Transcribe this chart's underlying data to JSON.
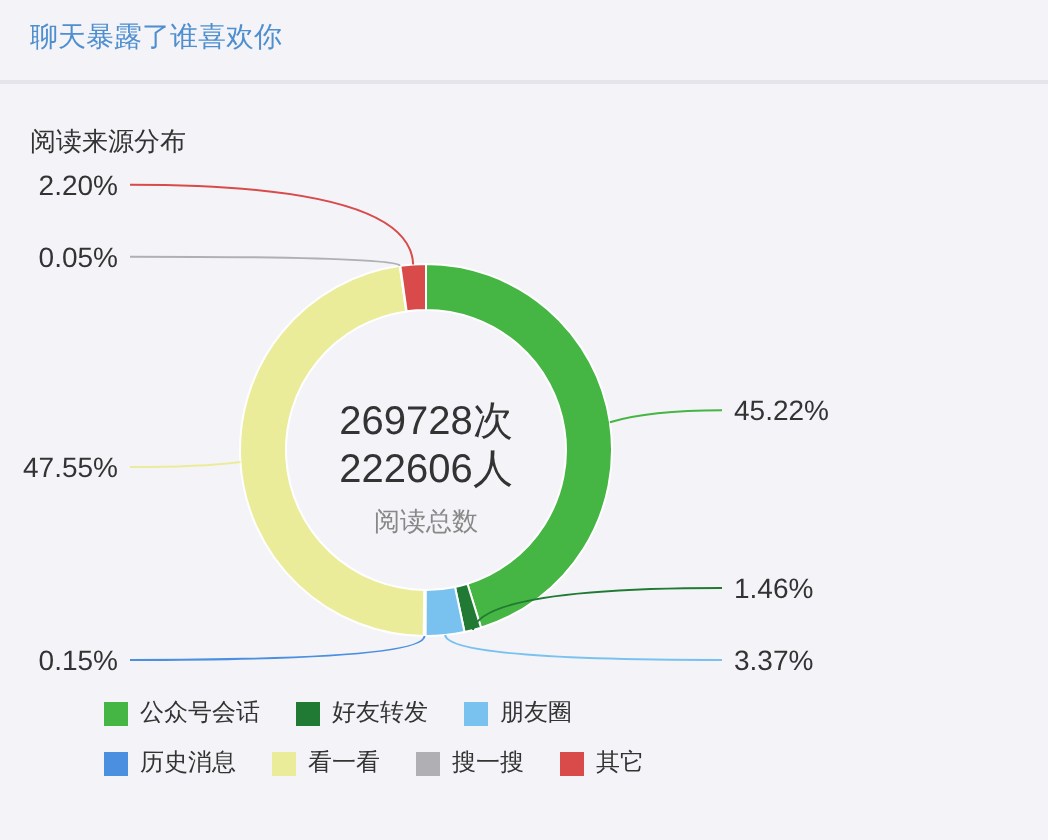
{
  "chart_data": {
    "type": "donut",
    "title": "聊天暴露了谁喜欢你",
    "subtitle": "阅读来源分布",
    "categories": [
      "公众号会话",
      "好友转发",
      "朋友圈",
      "历史消息",
      "看一看",
      "搜一搜",
      "其它"
    ],
    "values": [
      45.22,
      1.46,
      3.37,
      0.15,
      47.55,
      0.05,
      2.2
    ],
    "value_labels": [
      "45.22%",
      "1.46%",
      "3.37%",
      "0.15%",
      "47.55%",
      "0.05%",
      "2.20%"
    ],
    "colors": [
      "#45b543",
      "#217a33",
      "#79c2f0",
      "#4a8fe0",
      "#ebec9a",
      "#b0b0b4",
      "#d94a4a"
    ],
    "annotations": [
      "269728次",
      "222606人",
      "阅读总数"
    ],
    "legend": "bottom"
  }
}
